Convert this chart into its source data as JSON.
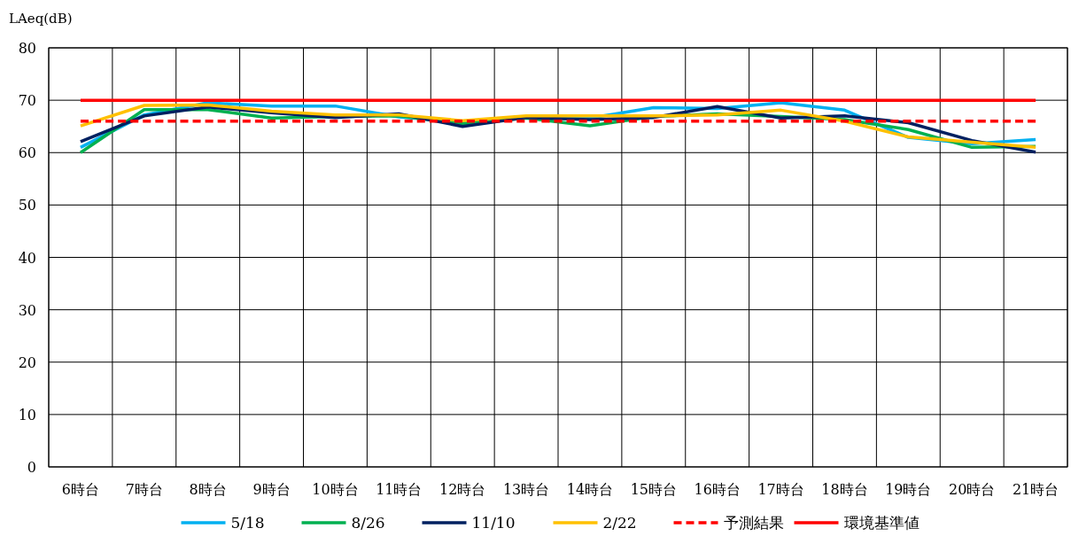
{
  "chart_data": {
    "type": "line",
    "ylabel": "LAeq(dB)",
    "categories": [
      "6時台",
      "7時台",
      "8時台",
      "9時台",
      "10時台",
      "11時台",
      "12時台",
      "13時台",
      "14時台",
      "15時台",
      "16時台",
      "17時台",
      "18時台",
      "19時台",
      "20時台",
      "21時台"
    ],
    "series": [
      {
        "name": "5/18",
        "color": "#00b0f0",
        "values": [
          61.0,
          67.2,
          69.5,
          68.9,
          68.9,
          66.8,
          65.8,
          66.7,
          66.6,
          68.6,
          68.4,
          69.5,
          68.1,
          62.9,
          61.7,
          62.5
        ]
      },
      {
        "name": "8/26",
        "color": "#00b050",
        "values": [
          60.0,
          68.2,
          68.2,
          66.6,
          66.9,
          67.0,
          65.5,
          66.6,
          65.1,
          66.9,
          67.4,
          66.9,
          66.3,
          64.4,
          61.0,
          61.2
        ]
      },
      {
        "name": "11/10",
        "color": "#002060",
        "values": [
          62.1,
          67.0,
          68.7,
          67.6,
          66.7,
          67.4,
          65.0,
          66.7,
          66.3,
          66.7,
          68.8,
          66.6,
          67.0,
          65.7,
          62.3,
          60.1
        ]
      },
      {
        "name": "2/22",
        "color": "#ffc000",
        "values": [
          65.1,
          69.0,
          69.1,
          67.9,
          67.2,
          67.2,
          66.1,
          67.0,
          67.0,
          67.0,
          67.2,
          68.1,
          66.0,
          63.0,
          62.0,
          61.0
        ]
      },
      {
        "name": "予測結果",
        "color": "#ff0000",
        "line_style": "dashed",
        "values": [
          66,
          66,
          66,
          66,
          66,
          66,
          66,
          66,
          66,
          66,
          66,
          66,
          66,
          66,
          66,
          66
        ]
      },
      {
        "name": "環境基準値",
        "color": "#ff0000",
        "line_style": "solid",
        "values": [
          70,
          70,
          70,
          70,
          70,
          70,
          70,
          70,
          70,
          70,
          70,
          70,
          70,
          70,
          70,
          70
        ]
      }
    ],
    "ylim": [
      0,
      80
    ],
    "yticks": [
      0,
      10,
      20,
      30,
      40,
      50,
      60,
      70,
      80
    ],
    "grid": true,
    "legend": "bottom"
  }
}
